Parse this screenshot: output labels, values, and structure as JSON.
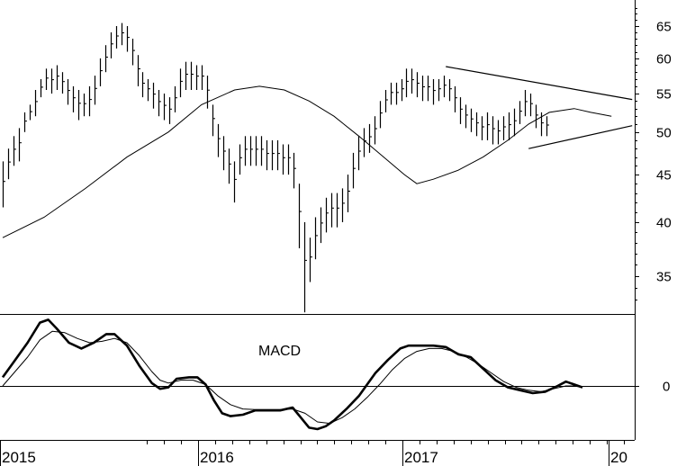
{
  "chart_data": [
    {
      "type": "bar",
      "subtype": "ohlc",
      "scale": "log",
      "ylim": [
        31,
        69
      ],
      "y_ticks": [
        35,
        40,
        45,
        50,
        55,
        60,
        65
      ],
      "x_ticks": [
        "2015",
        "2016",
        "2017",
        "20"
      ],
      "bars": [
        [
          0.0,
          41.5,
          46.5
        ],
        [
          1.3,
          44.5,
          48.0
        ],
        [
          2.6,
          46.0,
          49.5
        ],
        [
          3.9,
          46.5,
          50.5
        ],
        [
          5.2,
          50.0,
          52.5
        ],
        [
          6.5,
          51.5,
          53.5
        ],
        [
          7.8,
          52.0,
          55.5
        ],
        [
          9.1,
          54.5,
          57.0
        ],
        [
          10.4,
          55.5,
          58.5
        ],
        [
          11.7,
          55.0,
          58.5
        ],
        [
          13.0,
          55.5,
          59.0
        ],
        [
          14.3,
          55.0,
          58.0
        ],
        [
          15.6,
          53.5,
          57.0
        ],
        [
          16.9,
          52.5,
          56.0
        ],
        [
          18.2,
          51.5,
          55.5
        ],
        [
          19.5,
          52.0,
          55.0
        ],
        [
          20.8,
          52.0,
          56.0
        ],
        [
          22.1,
          53.5,
          57.5
        ],
        [
          23.4,
          56.0,
          60.0
        ],
        [
          24.7,
          58.0,
          62.0
        ],
        [
          26.0,
          60.0,
          64.0
        ],
        [
          27.3,
          61.5,
          65.0
        ],
        [
          28.6,
          62.0,
          65.5
        ],
        [
          29.9,
          61.0,
          65.0
        ],
        [
          31.2,
          59.0,
          63.0
        ],
        [
          32.5,
          56.0,
          60.5
        ],
        [
          33.8,
          54.5,
          58.0
        ],
        [
          35.1,
          54.0,
          57.0
        ],
        [
          36.4,
          53.0,
          56.5
        ],
        [
          37.7,
          52.0,
          55.5
        ],
        [
          39.0,
          51.5,
          55.0
        ],
        [
          40.3,
          51.0,
          54.5
        ],
        [
          41.6,
          52.5,
          56.0
        ],
        [
          42.9,
          54.5,
          58.5
        ],
        [
          44.2,
          55.5,
          59.5
        ],
        [
          45.5,
          55.5,
          59.5
        ],
        [
          46.8,
          55.5,
          59.0
        ],
        [
          48.1,
          55.5,
          59.0
        ],
        [
          49.4,
          53.0,
          57.5
        ],
        [
          50.7,
          49.5,
          53.5
        ],
        [
          52.0,
          47.0,
          51.0
        ],
        [
          53.3,
          45.5,
          49.5
        ],
        [
          54.6,
          44.0,
          48.0
        ],
        [
          55.9,
          42.0,
          46.5
        ],
        [
          57.2,
          45.0,
          48.5
        ],
        [
          58.5,
          46.0,
          49.5
        ],
        [
          59.8,
          46.0,
          49.5
        ],
        [
          61.1,
          46.0,
          49.5
        ],
        [
          62.4,
          46.0,
          49.5
        ],
        [
          63.7,
          45.5,
          49.0
        ],
        [
          65.0,
          45.5,
          49.0
        ],
        [
          66.3,
          45.5,
          49.0
        ],
        [
          67.6,
          45.0,
          48.5
        ],
        [
          68.9,
          45.0,
          48.5
        ],
        [
          70.2,
          43.5,
          47.5
        ],
        [
          71.5,
          37.5,
          44.0
        ],
        [
          72.8,
          32.0,
          40.0
        ],
        [
          74.1,
          34.5,
          38.5
        ],
        [
          75.4,
          36.5,
          40.5
        ],
        [
          76.7,
          38.0,
          41.5
        ],
        [
          78.0,
          39.0,
          42.5
        ],
        [
          79.3,
          39.5,
          43.0
        ],
        [
          80.6,
          39.5,
          43.0
        ],
        [
          81.9,
          40.0,
          43.5
        ],
        [
          83.2,
          41.0,
          45.0
        ],
        [
          84.5,
          43.5,
          47.5
        ],
        [
          85.8,
          45.5,
          49.5
        ],
        [
          87.1,
          47.0,
          50.5
        ],
        [
          88.4,
          47.5,
          51.0
        ],
        [
          89.7,
          48.5,
          52.0
        ],
        [
          91.0,
          50.5,
          54.0
        ],
        [
          92.3,
          52.5,
          55.5
        ],
        [
          93.6,
          53.5,
          56.5
        ],
        [
          94.9,
          53.5,
          56.5
        ],
        [
          96.2,
          54.0,
          57.0
        ],
        [
          97.5,
          54.5,
          58.5
        ],
        [
          98.8,
          55.0,
          58.5
        ],
        [
          100.1,
          54.5,
          58.0
        ],
        [
          101.4,
          54.0,
          57.5
        ],
        [
          102.7,
          54.0,
          57.5
        ],
        [
          104.0,
          53.5,
          57.0
        ],
        [
          105.3,
          54.0,
          57.0
        ],
        [
          106.6,
          54.5,
          57.5
        ],
        [
          107.9,
          54.0,
          57.0
        ],
        [
          109.2,
          52.5,
          56.0
        ],
        [
          110.5,
          51.0,
          54.5
        ],
        [
          111.8,
          50.5,
          53.5
        ],
        [
          113.1,
          50.0,
          53.0
        ],
        [
          114.4,
          49.5,
          52.5
        ],
        [
          115.7,
          49.0,
          52.0
        ],
        [
          117.0,
          49.0,
          52.5
        ],
        [
          118.3,
          48.5,
          52.0
        ],
        [
          119.6,
          48.5,
          51.5
        ],
        [
          120.9,
          49.0,
          52.0
        ],
        [
          122.2,
          49.0,
          52.5
        ],
        [
          123.5,
          49.5,
          53.0
        ],
        [
          124.8,
          51.0,
          54.0
        ],
        [
          126.1,
          52.0,
          55.5
        ],
        [
          127.4,
          52.0,
          55.0
        ],
        [
          128.7,
          50.5,
          53.5
        ],
        [
          130.0,
          49.5,
          52.5
        ],
        [
          131.3,
          49.5,
          52.0
        ]
      ],
      "moving_average": [
        [
          0,
          38.5
        ],
        [
          10,
          40.5
        ],
        [
          20,
          43.5
        ],
        [
          30,
          47.0
        ],
        [
          40,
          50.0
        ],
        [
          48,
          53.5
        ],
        [
          56,
          55.5
        ],
        [
          62,
          56.0
        ],
        [
          68,
          55.5
        ],
        [
          74,
          54.0
        ],
        [
          80,
          52.0
        ],
        [
          86,
          49.5
        ],
        [
          92,
          47.0
        ],
        [
          97,
          45.0
        ],
        [
          100,
          44.0
        ],
        [
          104,
          44.5
        ],
        [
          110,
          45.5
        ],
        [
          116,
          47.0
        ],
        [
          122,
          49.0
        ],
        [
          127,
          51.0
        ],
        [
          132,
          52.5
        ],
        [
          138,
          53.0
        ],
        [
          142,
          52.5
        ],
        [
          147,
          52.0
        ]
      ],
      "trendlines": [
        {
          "points": [
            [
              107,
              58.8
            ],
            [
              152,
              54.2
            ]
          ]
        },
        {
          "points": [
            [
              127,
              48.0
            ],
            [
              152,
              50.8
            ]
          ]
        }
      ]
    },
    {
      "type": "line",
      "annotation": "MACD",
      "y_ticks": [
        0
      ],
      "series": [
        {
          "points": [
            [
              0,
              0.3
            ],
            [
              3,
              0.9
            ],
            [
              6,
              1.5
            ],
            [
              9,
              2.2
            ],
            [
              11,
              2.3
            ],
            [
              13,
              2.0
            ],
            [
              16,
              1.5
            ],
            [
              19,
              1.3
            ],
            [
              22,
              1.5
            ],
            [
              25,
              1.8
            ],
            [
              27,
              1.8
            ],
            [
              30,
              1.4
            ],
            [
              33,
              0.7
            ],
            [
              36,
              0.1
            ],
            [
              38,
              -0.1
            ],
            [
              40,
              -0.05
            ],
            [
              42,
              0.25
            ],
            [
              45,
              0.3
            ],
            [
              47,
              0.3
            ],
            [
              49,
              0.05
            ],
            [
              51,
              -0.5
            ],
            [
              53,
              -0.95
            ],
            [
              55,
              -1.05
            ],
            [
              58,
              -1.0
            ],
            [
              61,
              -0.85
            ],
            [
              64,
              -0.85
            ],
            [
              67,
              -0.85
            ],
            [
              70,
              -0.75
            ],
            [
              72,
              -1.1
            ],
            [
              74,
              -1.45
            ],
            [
              76,
              -1.5
            ],
            [
              78,
              -1.4
            ],
            [
              80,
              -1.2
            ],
            [
              83,
              -0.8
            ],
            [
              86,
              -0.35
            ],
            [
              88,
              0.05
            ],
            [
              90,
              0.45
            ],
            [
              93,
              0.9
            ],
            [
              96,
              1.3
            ],
            [
              98,
              1.4
            ],
            [
              101,
              1.4
            ],
            [
              104,
              1.4
            ],
            [
              107,
              1.35
            ],
            [
              110,
              1.1
            ],
            [
              113,
              1.0
            ],
            [
              116,
              0.6
            ],
            [
              119,
              0.2
            ],
            [
              122,
              -0.05
            ],
            [
              125,
              -0.15
            ],
            [
              128,
              -0.25
            ],
            [
              131,
              -0.2
            ],
            [
              134,
              0.0
            ],
            [
              136,
              0.15
            ],
            [
              138,
              0.05
            ],
            [
              140,
              -0.05
            ]
          ]
        },
        {
          "points": [
            [
              0,
              0.0
            ],
            [
              3,
              0.5
            ],
            [
              6,
              1.0
            ],
            [
              9,
              1.6
            ],
            [
              12,
              1.9
            ],
            [
              15,
              1.85
            ],
            [
              18,
              1.65
            ],
            [
              21,
              1.5
            ],
            [
              24,
              1.55
            ],
            [
              27,
              1.65
            ],
            [
              30,
              1.5
            ],
            [
              33,
              1.05
            ],
            [
              36,
              0.5
            ],
            [
              38,
              0.2
            ],
            [
              40,
              0.1
            ],
            [
              43,
              0.2
            ],
            [
              46,
              0.2
            ],
            [
              49,
              0.05
            ],
            [
              52,
              -0.35
            ],
            [
              55,
              -0.65
            ],
            [
              58,
              -0.8
            ],
            [
              61,
              -0.82
            ],
            [
              64,
              -0.82
            ],
            [
              67,
              -0.82
            ],
            [
              70,
              -0.8
            ],
            [
              73,
              -0.95
            ],
            [
              76,
              -1.25
            ],
            [
              79,
              -1.3
            ],
            [
              82,
              -1.1
            ],
            [
              85,
              -0.8
            ],
            [
              88,
              -0.4
            ],
            [
              91,
              0.05
            ],
            [
              94,
              0.55
            ],
            [
              97,
              0.95
            ],
            [
              100,
              1.2
            ],
            [
              103,
              1.3
            ],
            [
              106,
              1.3
            ],
            [
              109,
              1.2
            ],
            [
              112,
              1.0
            ],
            [
              115,
              0.75
            ],
            [
              118,
              0.45
            ],
            [
              121,
              0.15
            ],
            [
              124,
              -0.05
            ],
            [
              127,
              -0.15
            ],
            [
              130,
              -0.2
            ],
            [
              133,
              -0.1
            ],
            [
              136,
              0.0
            ],
            [
              138,
              0.0
            ],
            [
              140,
              -0.05
            ]
          ]
        }
      ]
    }
  ]
}
